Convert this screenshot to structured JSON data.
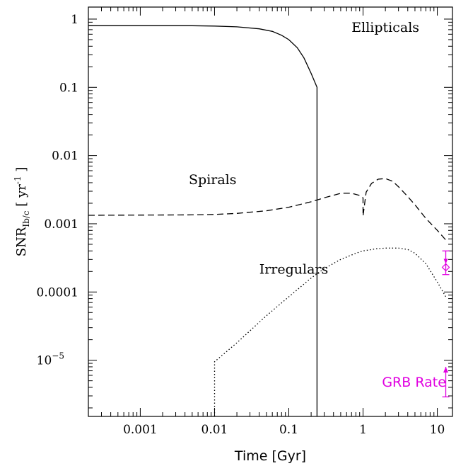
{
  "chart_data": {
    "type": "line",
    "xlabel": "Time [Gyr]",
    "ylabel": {
      "main": "SNR",
      "sub": "Ib/c",
      "unit": "[ yr",
      "exp": "-1",
      "close": " ]"
    },
    "xscale": "log",
    "yscale": "log",
    "xlim": [
      0.0002,
      16
    ],
    "ylim": [
      1.5e-06,
      1.5
    ],
    "x_ticks": [
      {
        "value": 0.001,
        "label": "0.001"
      },
      {
        "value": 0.01,
        "label": "0.01"
      },
      {
        "value": 0.1,
        "label": "0.1"
      },
      {
        "value": 1,
        "label": "1"
      },
      {
        "value": 10,
        "label": "10"
      }
    ],
    "y_ticks": [
      {
        "value": 1,
        "label": "1"
      },
      {
        "value": 0.1,
        "label": "0.1"
      },
      {
        "value": 0.01,
        "label": "0.01"
      },
      {
        "value": 0.001,
        "label": "0.001"
      },
      {
        "value": 0.0001,
        "label": "0.0001"
      },
      {
        "value": 1e-05,
        "label": "10",
        "exp": "−5"
      }
    ],
    "series": [
      {
        "name": "Ellipticals",
        "style": "solid",
        "x": [
          0.0002,
          0.001,
          0.005,
          0.01,
          0.02,
          0.04,
          0.06,
          0.08,
          0.1,
          0.13,
          0.16,
          0.2,
          0.24,
          0.24
        ],
        "y": [
          0.8,
          0.8,
          0.8,
          0.79,
          0.77,
          0.72,
          0.66,
          0.58,
          0.5,
          0.38,
          0.27,
          0.16,
          0.1,
          1.5e-06
        ]
      },
      {
        "name": "Spirals",
        "style": "dashed",
        "x": [
          0.0002,
          0.001,
          0.005,
          0.01,
          0.02,
          0.05,
          0.1,
          0.2,
          0.3,
          0.5,
          0.7,
          0.9,
          1.0,
          1.0,
          1.1,
          1.3,
          1.6,
          2.0,
          2.5,
          3.0,
          4.0,
          5.0,
          7.0,
          10.0,
          13.0
        ],
        "y": [
          0.00133,
          0.00134,
          0.00135,
          0.00137,
          0.00142,
          0.00155,
          0.00175,
          0.0021,
          0.0024,
          0.0028,
          0.0028,
          0.0026,
          0.0024,
          0.0013,
          0.0029,
          0.0039,
          0.0045,
          0.0046,
          0.0042,
          0.0035,
          0.0025,
          0.0019,
          0.0012,
          0.0008,
          0.00058
        ]
      },
      {
        "name": "Irregulars",
        "style": "dotted",
        "x": [
          0.01,
          0.01,
          0.02,
          0.05,
          0.1,
          0.2,
          0.3,
          0.5,
          0.8,
          1.0,
          1.5,
          2.0,
          3.0,
          4.0,
          5.0,
          7.0,
          10.0,
          13.0
        ],
        "y": [
          1.5e-06,
          9.5e-06,
          1.8e-05,
          4.5e-05,
          8.5e-05,
          0.00016,
          0.00022,
          0.0003,
          0.00037,
          0.0004,
          0.00043,
          0.00044,
          0.00044,
          0.00042,
          0.00037,
          0.00026,
          0.00014,
          8.5e-05
        ]
      }
    ],
    "series_labels": [
      {
        "text": "Ellipticals",
        "x": 0.7,
        "y": 0.65
      },
      {
        "text": "Spirals",
        "x": 0.0045,
        "y": 0.0038
      },
      {
        "text": "Irregulars",
        "x": 0.04,
        "y": 0.000185
      }
    ],
    "grb_points": [
      {
        "x": 13,
        "y": 2.3e-05,
        "arrow_top": 8e-06,
        "lower_bar": 2.9e-06,
        "style": "lower-limit"
      },
      {
        "x": 13,
        "y": 0.00023,
        "upper_bar": 0.0004,
        "lower_bar": 0.00018,
        "arrow_from": 0.00033,
        "style": "errorbar-diamond"
      }
    ],
    "grb_label": {
      "text": "GRB Rate",
      "x": 1.8,
      "y": 4.1e-06
    },
    "colors": {
      "axes": "#000000",
      "grb": "#e000e0",
      "background": "#ffffff"
    }
  }
}
